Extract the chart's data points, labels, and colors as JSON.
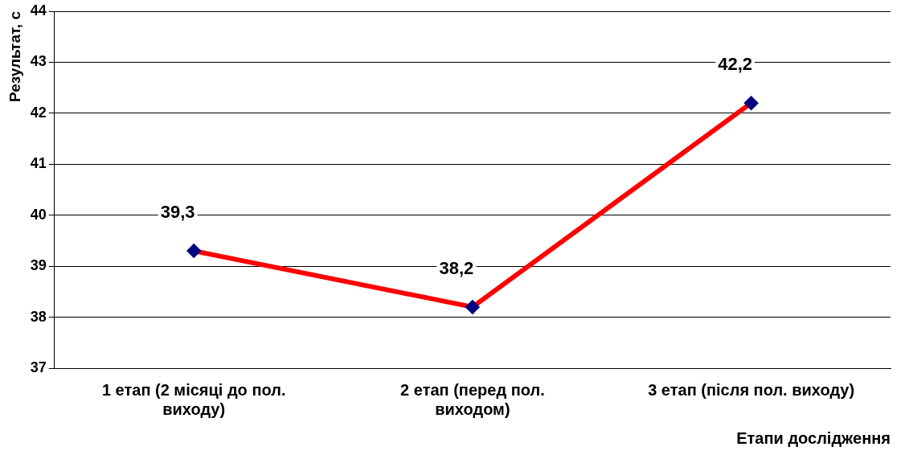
{
  "chart_data": {
    "type": "line",
    "ylabel": "Результат, с",
    "xlabel": "Етапи дослідження",
    "categories": [
      "1 етап (2 місяці до пол. виходу)",
      "2 етап (перед пол. виходом)",
      "3 етап (після пол. виходу)"
    ],
    "series": [
      {
        "color": "#ff0000",
        "values": [
          39.3,
          38.2,
          42.2
        ],
        "value_labels": [
          "39,3",
          "38,2",
          "42,2"
        ]
      }
    ],
    "ylim": [
      37,
      44
    ],
    "yticks": [
      37,
      38,
      39,
      40,
      41,
      42,
      43,
      44
    ],
    "grid": "y",
    "legend": false,
    "marker": "diamond",
    "line_style": "solid"
  }
}
